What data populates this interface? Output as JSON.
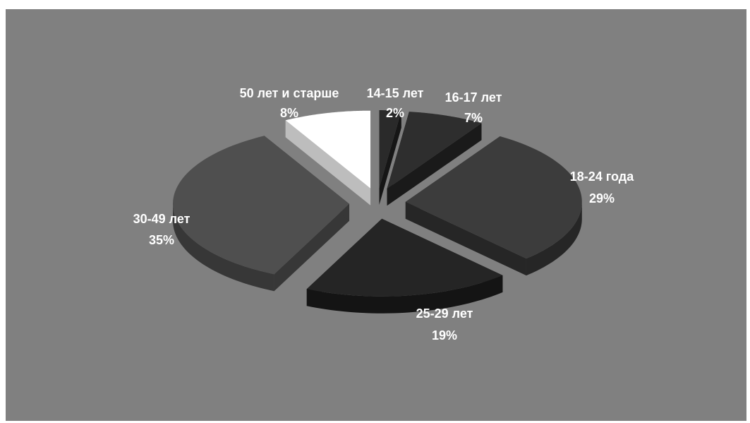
{
  "chart_data": {
    "type": "pie",
    "style": "3d-exploded",
    "title": "",
    "categories": [
      "14-15 лет",
      "16-17 лет",
      "18-24 года",
      "25-29 лет",
      "30-49 лет",
      "50 лет и старше"
    ],
    "values": [
      2,
      7,
      29,
      19,
      35,
      8
    ],
    "value_labels": [
      "2%",
      "7%",
      "29%",
      "19%",
      "35%",
      "8%"
    ],
    "colors": {
      "plot_background": "#808080",
      "slice_tops": [
        "#2a2a2a",
        "#2e2e2e",
        "#3c3c3c",
        "#252525",
        "#4f4f4f",
        "#ffffff"
      ],
      "slice_sides": [
        "#161616",
        "#1a1a1a",
        "#262626",
        "#141414",
        "#373737",
        "#bdbdbd"
      ],
      "label": "#ffffff"
    },
    "legend": "none",
    "grid": false
  }
}
